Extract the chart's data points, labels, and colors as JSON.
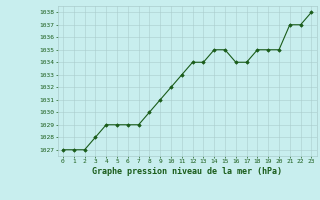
{
  "x": [
    0,
    1,
    2,
    3,
    4,
    5,
    6,
    7,
    8,
    9,
    10,
    11,
    12,
    13,
    14,
    15,
    16,
    17,
    18,
    19,
    20,
    21,
    22,
    23
  ],
  "y": [
    1027,
    1027,
    1027,
    1028,
    1029,
    1029,
    1029,
    1029,
    1030,
    1031,
    1032,
    1033,
    1034,
    1034,
    1035,
    1035,
    1034,
    1034,
    1035,
    1035,
    1035,
    1037,
    1037,
    1038
  ],
  "ylim": [
    1026.5,
    1038.5
  ],
  "xlim": [
    -0.5,
    23.5
  ],
  "yticks": [
    1027,
    1028,
    1029,
    1030,
    1031,
    1032,
    1033,
    1034,
    1035,
    1036,
    1037,
    1038
  ],
  "xticks": [
    0,
    1,
    2,
    3,
    4,
    5,
    6,
    7,
    8,
    9,
    10,
    11,
    12,
    13,
    14,
    15,
    16,
    17,
    18,
    19,
    20,
    21,
    22,
    23
  ],
  "line_color": "#1a5c1a",
  "marker": "D",
  "marker_size": 1.8,
  "line_width": 0.8,
  "bg_color": "#c8eeee",
  "grid_color": "#aacccc",
  "xlabel": "Graphe pression niveau de la mer (hPa)",
  "xlabel_color": "#1a5c1a",
  "xlabel_fontsize": 6.0,
  "tick_fontsize": 4.5,
  "tick_color": "#1a5c1a"
}
